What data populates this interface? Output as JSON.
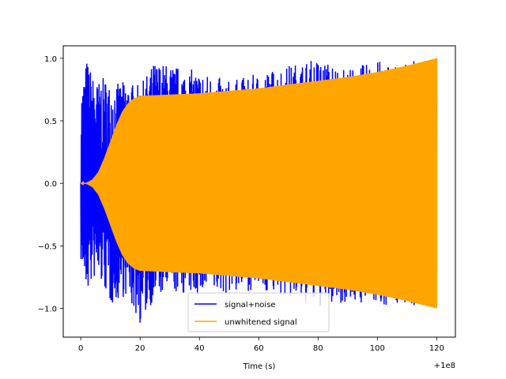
{
  "chart_data": {
    "type": "line",
    "title": "",
    "xlabel": "Time (s)",
    "ylabel": "",
    "x_offset_label": "+1e8",
    "xlim": [
      -5.9,
      126.3
    ],
    "ylim": [
      -1.23,
      1.1
    ],
    "xticks": [
      0,
      20,
      40,
      60,
      80,
      100,
      120
    ],
    "xtick_labels": [
      "0",
      "20",
      "40",
      "60",
      "80",
      "100",
      "120"
    ],
    "yticks": [
      -1.0,
      -0.5,
      0.0,
      0.5,
      1.0
    ],
    "ytick_labels": [
      "−1.0",
      "−0.5",
      "0.0",
      "0.5",
      "1.0"
    ],
    "grid": false,
    "legend_position": "lower-center",
    "series": [
      {
        "name": "signal+noise",
        "color": "#0000ff",
        "x": [
          0,
          2,
          5,
          8,
          10,
          15,
          20,
          25,
          30,
          40,
          50,
          60,
          70,
          80,
          90,
          100,
          110,
          120
        ],
        "upper": [
          0.7,
          1.0,
          0.8,
          0.85,
          0.78,
          0.82,
          0.78,
          0.98,
          0.95,
          0.9,
          0.82,
          0.88,
          0.95,
          1.0,
          0.92,
          0.98,
          0.97,
          1.0
        ],
        "lower": [
          -0.62,
          -0.88,
          -0.75,
          -0.85,
          -0.98,
          -0.9,
          -1.13,
          -0.92,
          -0.88,
          -0.9,
          -0.88,
          -0.85,
          -0.92,
          -1.0,
          -0.95,
          -0.98,
          -0.97,
          -1.0
        ]
      },
      {
        "name": "unwhitened signal",
        "color": "#ffa500",
        "x": [
          0,
          2,
          4,
          6,
          8,
          10,
          12,
          14,
          16,
          18,
          20,
          25,
          30,
          40,
          50,
          60,
          70,
          80,
          90,
          100,
          110,
          120
        ],
        "amplitude": [
          0.0,
          0.005,
          0.03,
          0.09,
          0.2,
          0.33,
          0.46,
          0.57,
          0.64,
          0.68,
          0.7,
          0.705,
          0.71,
          0.72,
          0.74,
          0.76,
          0.79,
          0.82,
          0.85,
          0.89,
          0.94,
          1.0
        ]
      }
    ]
  }
}
